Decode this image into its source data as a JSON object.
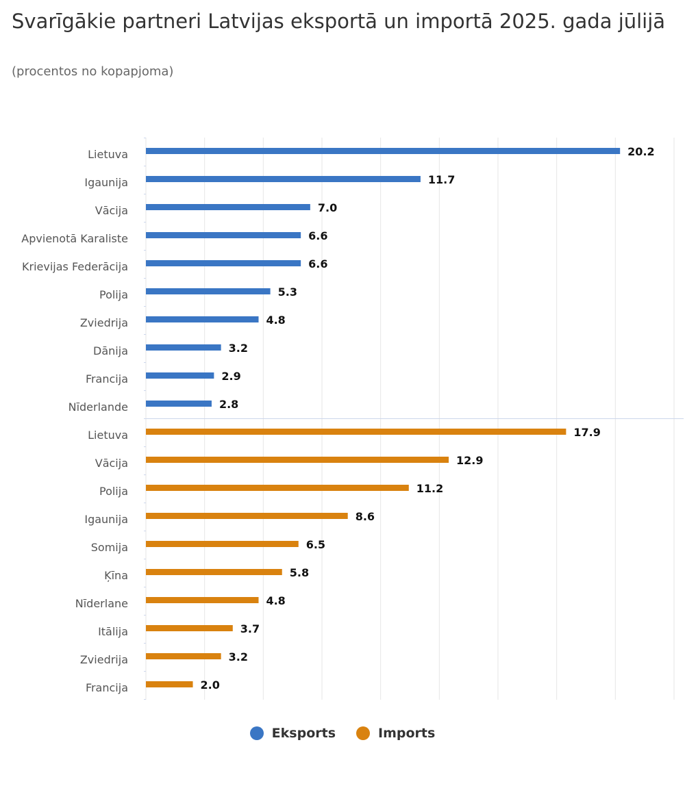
{
  "chart_data": {
    "type": "bar",
    "orientation": "horizontal",
    "title": "Svarīgākie partneri Latvijas eksportā un importā 2025. gada jūlijā",
    "subtitle": "(procentos no kopapjoma)",
    "xlim": [
      0,
      22.5
    ],
    "grid": true,
    "legend_placement": "bottom",
    "series": [
      {
        "name": "Eksports",
        "color": "#3a76c4",
        "categories": [
          "Lietuva",
          "Igaunija",
          "Vācija",
          "Apvienotā Karaliste",
          "Krievijas Federācija",
          "Polija",
          "Zviedrija",
          "Dānija",
          "Francija",
          "Nīderlande"
        ],
        "values": [
          20.2,
          11.7,
          7.0,
          6.6,
          6.6,
          5.3,
          4.8,
          3.2,
          2.9,
          2.8
        ],
        "labels": [
          "20.2",
          "11.7",
          "7.0",
          "6.6",
          "6.6",
          "5.3",
          "4.8",
          "3.2",
          "2.9",
          "2.8"
        ]
      },
      {
        "name": "Imports",
        "color": "#d9820f",
        "categories": [
          "Lietuva",
          "Vācija",
          "Polija",
          "Igaunija",
          "Somija",
          "Ķīna",
          "Nīderlane",
          "Itālija",
          "Zviedrija",
          "Francija"
        ],
        "values": [
          17.9,
          12.9,
          11.2,
          8.6,
          6.5,
          5.8,
          4.8,
          3.7,
          3.2,
          2.0
        ],
        "labels": [
          "17.9",
          "12.9",
          "11.2",
          "8.6",
          "6.5",
          "5.8",
          "4.8",
          "3.7",
          "3.2",
          "2.0"
        ]
      }
    ]
  }
}
